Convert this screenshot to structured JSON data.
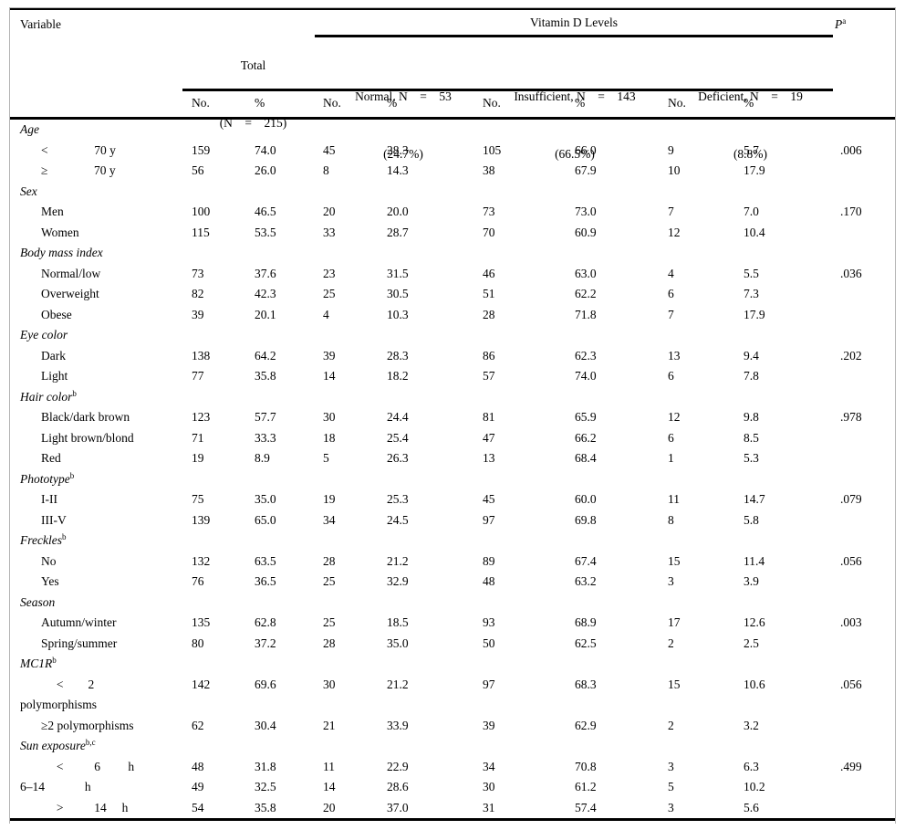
{
  "table": {
    "header": {
      "variable": "Variable",
      "total": {
        "line1": "Total",
        "line2": "(N    =    215)"
      },
      "vitamin_d": "Vitamin D Levels",
      "groups": [
        {
          "line1": "Normal, N    =    53",
          "line2": "(24.7%)"
        },
        {
          "line1": "Insufficient, N    =    143",
          "line2": "(66.5%)"
        },
        {
          "line1": "Deficient, N    =    19",
          "line2": "(8.8%)"
        }
      ],
      "p": {
        "label": "P",
        "sup": "a"
      },
      "col_no": "No.",
      "col_pct": "%"
    },
    "rows": [
      {
        "type": "section",
        "label": "Age"
      },
      {
        "type": "item",
        "label": "<               70 y",
        "cells": [
          "159",
          "74.0",
          "45",
          "28.3",
          "105",
          "66.0",
          "9",
          "5.7",
          ".006"
        ]
      },
      {
        "type": "item",
        "label": "≥               70 y",
        "cells": [
          "56",
          "26.0",
          "8",
          "14.3",
          "38",
          "67.9",
          "10",
          "17.9",
          ""
        ]
      },
      {
        "type": "section",
        "label": "Sex"
      },
      {
        "type": "item",
        "label": "Men",
        "cells": [
          "100",
          "46.5",
          "20",
          "20.0",
          "73",
          "73.0",
          "7",
          "7.0",
          ".170"
        ]
      },
      {
        "type": "item",
        "label": "Women",
        "cells": [
          "115",
          "53.5",
          "33",
          "28.7",
          "70",
          "60.9",
          "12",
          "10.4",
          ""
        ]
      },
      {
        "type": "section",
        "label": "Body mass index"
      },
      {
        "type": "item",
        "label": "Normal/low",
        "cells": [
          "73",
          "37.6",
          "23",
          "31.5",
          "46",
          "63.0",
          "4",
          "5.5",
          ".036"
        ]
      },
      {
        "type": "item",
        "label": "Overweight",
        "cells": [
          "82",
          "42.3",
          "25",
          "30.5",
          "51",
          "62.2",
          "6",
          "7.3",
          ""
        ]
      },
      {
        "type": "item",
        "label": "Obese",
        "cells": [
          "39",
          "20.1",
          "4",
          "10.3",
          "28",
          "71.8",
          "7",
          "17.9",
          ""
        ]
      },
      {
        "type": "section",
        "label": "Eye color"
      },
      {
        "type": "item",
        "label": "Dark",
        "cells": [
          "138",
          "64.2",
          "39",
          "28.3",
          "86",
          "62.3",
          "13",
          "9.4",
          ".202"
        ]
      },
      {
        "type": "item",
        "label": "Light",
        "cells": [
          "77",
          "35.8",
          "14",
          "18.2",
          "57",
          "74.0",
          "6",
          "7.8",
          ""
        ]
      },
      {
        "type": "section",
        "label": "Hair color",
        "sup": "b"
      },
      {
        "type": "item",
        "label": "Black/dark brown",
        "cells": [
          "123",
          "57.7",
          "30",
          "24.4",
          "81",
          "65.9",
          "12",
          "9.8",
          ".978"
        ]
      },
      {
        "type": "item",
        "label": "Light brown/blond",
        "cells": [
          "71",
          "33.3",
          "18",
          "25.4",
          "47",
          "66.2",
          "6",
          "8.5",
          ""
        ]
      },
      {
        "type": "item",
        "label": "Red",
        "cells": [
          "19",
          "8.9",
          "5",
          "26.3",
          "13",
          "68.4",
          "1",
          "5.3",
          ""
        ]
      },
      {
        "type": "section",
        "label": "Phototype",
        "sup": "b"
      },
      {
        "type": "item",
        "label": "I-II",
        "cells": [
          "75",
          "35.0",
          "19",
          "25.3",
          "45",
          "60.0",
          "11",
          "14.7",
          ".079"
        ]
      },
      {
        "type": "item",
        "label": "III-V",
        "cells": [
          "139",
          "65.0",
          "34",
          "24.5",
          "97",
          "69.8",
          "8",
          "5.8",
          ""
        ]
      },
      {
        "type": "section",
        "label": "Freckles",
        "sup": "b"
      },
      {
        "type": "item",
        "label": "No",
        "cells": [
          "132",
          "63.5",
          "28",
          "21.2",
          "89",
          "67.4",
          "15",
          "11.4",
          ".056"
        ]
      },
      {
        "type": "item",
        "label": "Yes",
        "cells": [
          "76",
          "36.5",
          "25",
          "32.9",
          "48",
          "63.2",
          "3",
          "3.9",
          ""
        ]
      },
      {
        "type": "section",
        "label": "Season"
      },
      {
        "type": "item",
        "label": "Autumn/winter",
        "cells": [
          "135",
          "62.8",
          "25",
          "18.5",
          "93",
          "68.9",
          "17",
          "12.6",
          ".003"
        ]
      },
      {
        "type": "item",
        "label": "Spring/summer",
        "cells": [
          "80",
          "37.2",
          "28",
          "35.0",
          "50",
          "62.5",
          "2",
          "2.5",
          ""
        ]
      },
      {
        "type": "section",
        "label": "MC1R",
        "sup": "b"
      },
      {
        "type": "item",
        "label": "     <        2",
        "cells": [
          "142",
          "69.6",
          "30",
          "21.2",
          "97",
          "68.3",
          "15",
          "10.6",
          ".056"
        ]
      },
      {
        "type": "flush",
        "label": "polymorphisms",
        "cells": [
          "",
          "",
          "",
          "",
          "",
          "",
          "",
          "",
          ""
        ]
      },
      {
        "type": "item",
        "label": "≥2 polymorphisms",
        "cells": [
          "62",
          "30.4",
          "21",
          "33.9",
          "39",
          "62.9",
          "2",
          "3.2",
          ""
        ]
      },
      {
        "type": "section",
        "label": "Sun exposure",
        "sup": "b,c"
      },
      {
        "type": "item",
        "label": "     <          6         h",
        "cells": [
          "48",
          "31.8",
          "11",
          "22.9",
          "34",
          "70.8",
          "3",
          "6.3",
          ".499"
        ]
      },
      {
        "type": "flush",
        "label": "6–14             h",
        "cells": [
          "49",
          "32.5",
          "14",
          "28.6",
          "30",
          "61.2",
          "5",
          "10.2",
          ""
        ]
      },
      {
        "type": "item",
        "label": "     >          14     h",
        "cells": [
          "54",
          "35.8",
          "20",
          "37.0",
          "31",
          "57.4",
          "3",
          "5.6",
          ""
        ]
      }
    ]
  }
}
